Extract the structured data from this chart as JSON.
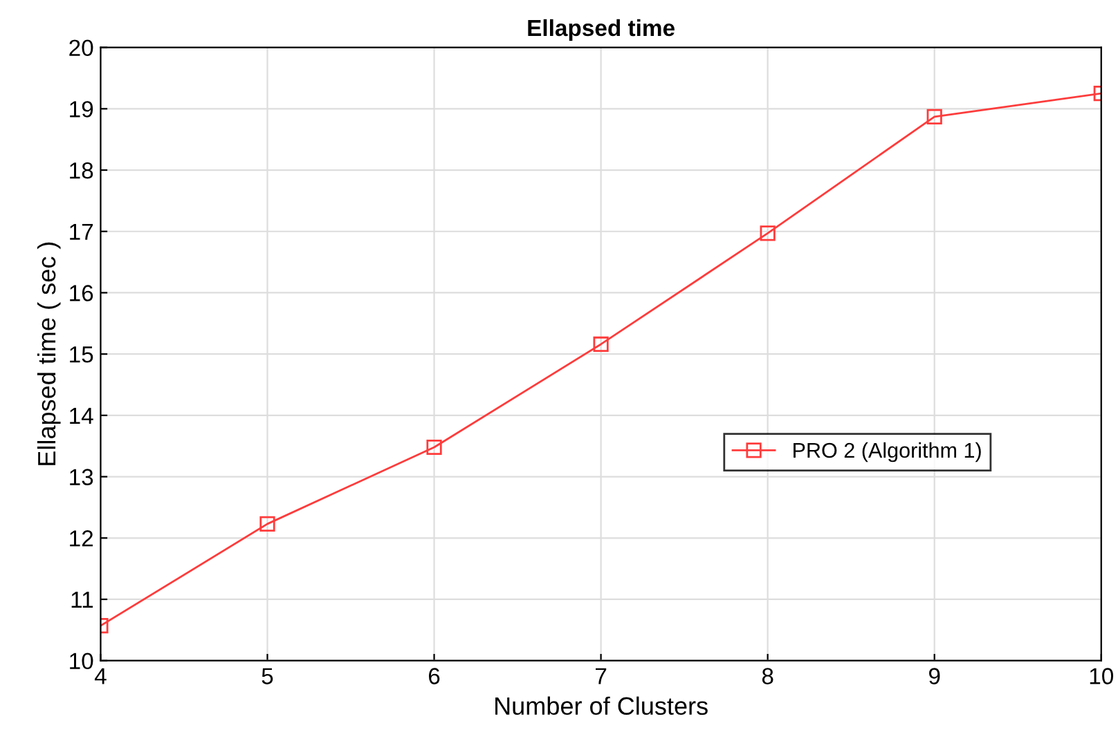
{
  "chart_data": {
    "type": "line",
    "title": "Ellapsed time",
    "xlabel": "Number of Clusters",
    "ylabel": "Ellapsed time ( sec )",
    "x": [
      4,
      5,
      6,
      7,
      8,
      9,
      10
    ],
    "series": [
      {
        "name": "PRO 2 (Algorithm 1)",
        "color": "#ff3b3b",
        "values": [
          10.57,
          12.23,
          13.48,
          15.16,
          16.97,
          18.87,
          19.25
        ]
      }
    ],
    "xlim": [
      4,
      10
    ],
    "xticks": [
      4,
      5,
      6,
      7,
      8,
      9,
      10
    ],
    "ylim": [
      10,
      20
    ],
    "yticks": [
      10,
      11,
      12,
      13,
      14,
      15,
      16,
      17,
      18,
      19,
      20
    ],
    "grid": true,
    "legend": "right",
    "marker": "square",
    "line_style": "solid"
  }
}
